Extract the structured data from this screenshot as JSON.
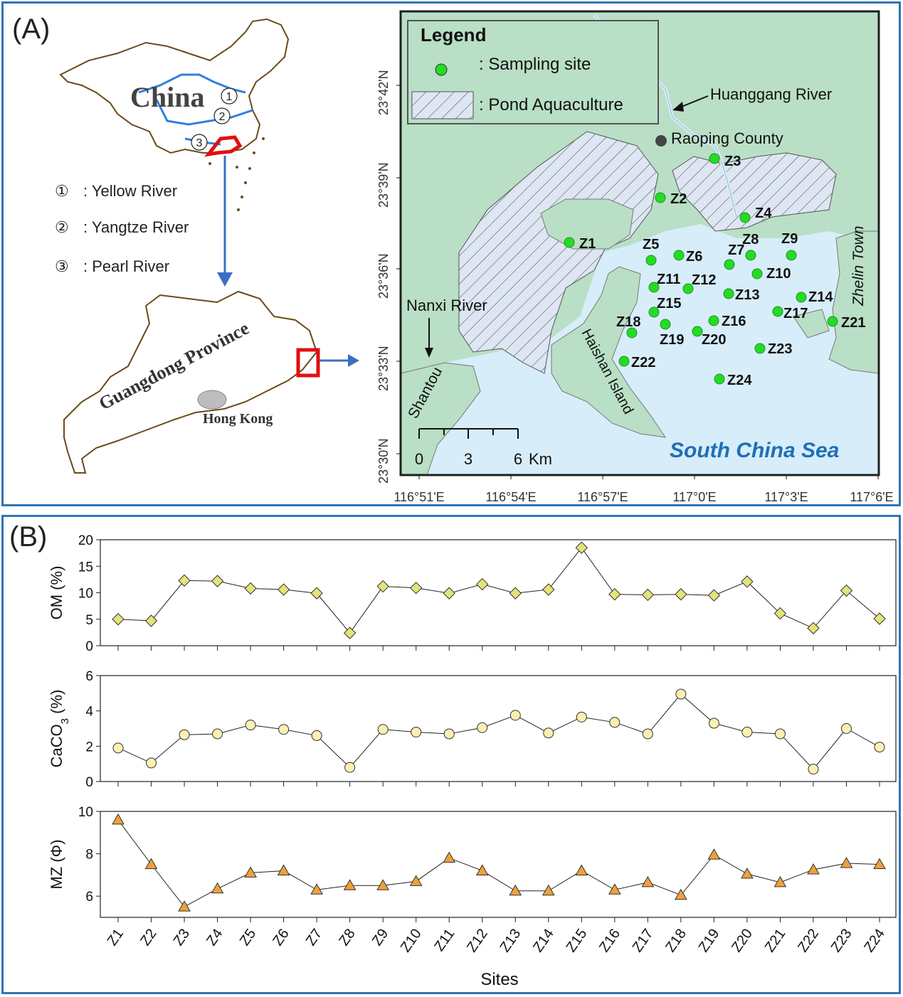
{
  "panel_a": {
    "label": "(A)",
    "inset": {
      "country_label": "China",
      "rivers": [
        {
          "marker": "①",
          "name": ": Yellow River"
        },
        {
          "marker": "②",
          "name": ": Yangtze River"
        },
        {
          "marker": "③",
          "name": ": Pearl River"
        }
      ],
      "province_label": "Guangdong Province",
      "hong_kong_label": "Hong Kong"
    },
    "map": {
      "legend_title": "Legend",
      "legend_site": ": Sampling site",
      "legend_pond": ": Pond Aquaculture",
      "place_labels": {
        "huanggang": "Huanggang River",
        "raoping": "Raoping County",
        "nanxi": "Nanxi River",
        "shantou": "Shantou",
        "haishan": "Haishan Island",
        "zhelin": "Zhelin Town",
        "sea": "South China Sea"
      },
      "sites": [
        "Z1",
        "Z2",
        "Z3",
        "Z4",
        "Z5",
        "Z6",
        "Z7",
        "Z8",
        "Z9",
        "Z10",
        "Z11",
        "Z12",
        "Z13",
        "Z14",
        "Z15",
        "Z16",
        "Z17",
        "Z18",
        "Z19",
        "Z20",
        "Z21",
        "Z22",
        "Z23",
        "Z24"
      ],
      "lat_ticks": [
        "23°30'N",
        "23°33'N",
        "23°36'N",
        "23°39'N",
        "23°42'N"
      ],
      "lon_ticks": [
        "116°51'E",
        "116°54'E",
        "116°57'E",
        "117°0'E",
        "117°3'E",
        "117°6'E"
      ],
      "scale_labels": [
        "0",
        "3",
        "6"
      ],
      "scale_unit": "Km",
      "colors": {
        "land": "#b9dfc6",
        "sea": "#d7edf9",
        "site": "#22dd22",
        "frame": "#1f1f1f"
      }
    }
  },
  "panel_b": {
    "label": "(B)",
    "xlabel": "Sites",
    "colors": {
      "om": "#e2e37a",
      "caco3": "#fbf0b2",
      "mz": "#f0a03a"
    }
  },
  "chart_data": [
    {
      "type": "line",
      "ylabel_main": "OM (%)",
      "ylabel_sub": "",
      "ylim": [
        0,
        20
      ],
      "yticks": [
        "0",
        "5",
        "10",
        "15",
        "20"
      ],
      "marker": "diamond",
      "categories": [
        "Z1",
        "Z2",
        "Z3",
        "Z4",
        "Z5",
        "Z6",
        "Z7",
        "Z8",
        "Z9",
        "Z10",
        "Z11",
        "Z12",
        "Z13",
        "Z14",
        "Z15",
        "Z16",
        "Z17",
        "Z18",
        "Z19",
        "Z20",
        "Z21",
        "Z22",
        "Z23",
        "Z24"
      ],
      "values": [
        5.0,
        4.7,
        12.3,
        12.2,
        10.8,
        10.6,
        9.9,
        2.4,
        11.2,
        10.9,
        9.9,
        11.6,
        9.9,
        10.6,
        18.5,
        9.7,
        9.6,
        9.7,
        9.5,
        12.1,
        6.1,
        3.3,
        10.4,
        5.1
      ]
    },
    {
      "type": "line",
      "ylabel_main": "CaCO",
      "ylabel_sub": "3",
      "ylabel_tail": " (%)",
      "ylim": [
        0,
        6
      ],
      "yticks": [
        "0",
        "2",
        "4",
        "6"
      ],
      "marker": "circle",
      "categories": [
        "Z1",
        "Z2",
        "Z3",
        "Z4",
        "Z5",
        "Z6",
        "Z7",
        "Z8",
        "Z9",
        "Z10",
        "Z11",
        "Z12",
        "Z13",
        "Z14",
        "Z15",
        "Z16",
        "Z17",
        "Z18",
        "Z19",
        "Z20",
        "Z21",
        "Z22",
        "Z23",
        "Z24"
      ],
      "values": [
        1.9,
        1.05,
        2.65,
        2.7,
        3.2,
        2.95,
        2.6,
        0.8,
        2.95,
        2.8,
        2.7,
        3.05,
        3.75,
        2.75,
        3.65,
        3.35,
        2.7,
        4.95,
        3.3,
        2.8,
        2.7,
        0.7,
        3.0,
        1.95
      ]
    },
    {
      "type": "line",
      "ylabel_main": "MZ (Φ)",
      "ylabel_sub": "",
      "ylim": [
        5,
        10
      ],
      "yticks": [
        "6",
        "8",
        "10"
      ],
      "marker": "triangle",
      "categories": [
        "Z1",
        "Z2",
        "Z3",
        "Z4",
        "Z5",
        "Z6",
        "Z7",
        "Z8",
        "Z9",
        "Z10",
        "Z11",
        "Z12",
        "Z13",
        "Z14",
        "Z15",
        "Z16",
        "Z17",
        "Z18",
        "Z19",
        "Z20",
        "Z21",
        "Z22",
        "Z23",
        "Z24"
      ],
      "values": [
        9.6,
        7.5,
        5.5,
        6.35,
        7.1,
        7.2,
        6.3,
        6.5,
        6.5,
        6.7,
        7.8,
        7.2,
        6.25,
        6.25,
        7.2,
        6.3,
        6.65,
        6.05,
        7.95,
        7.05,
        6.65,
        7.25,
        7.55,
        7.5
      ]
    }
  ]
}
